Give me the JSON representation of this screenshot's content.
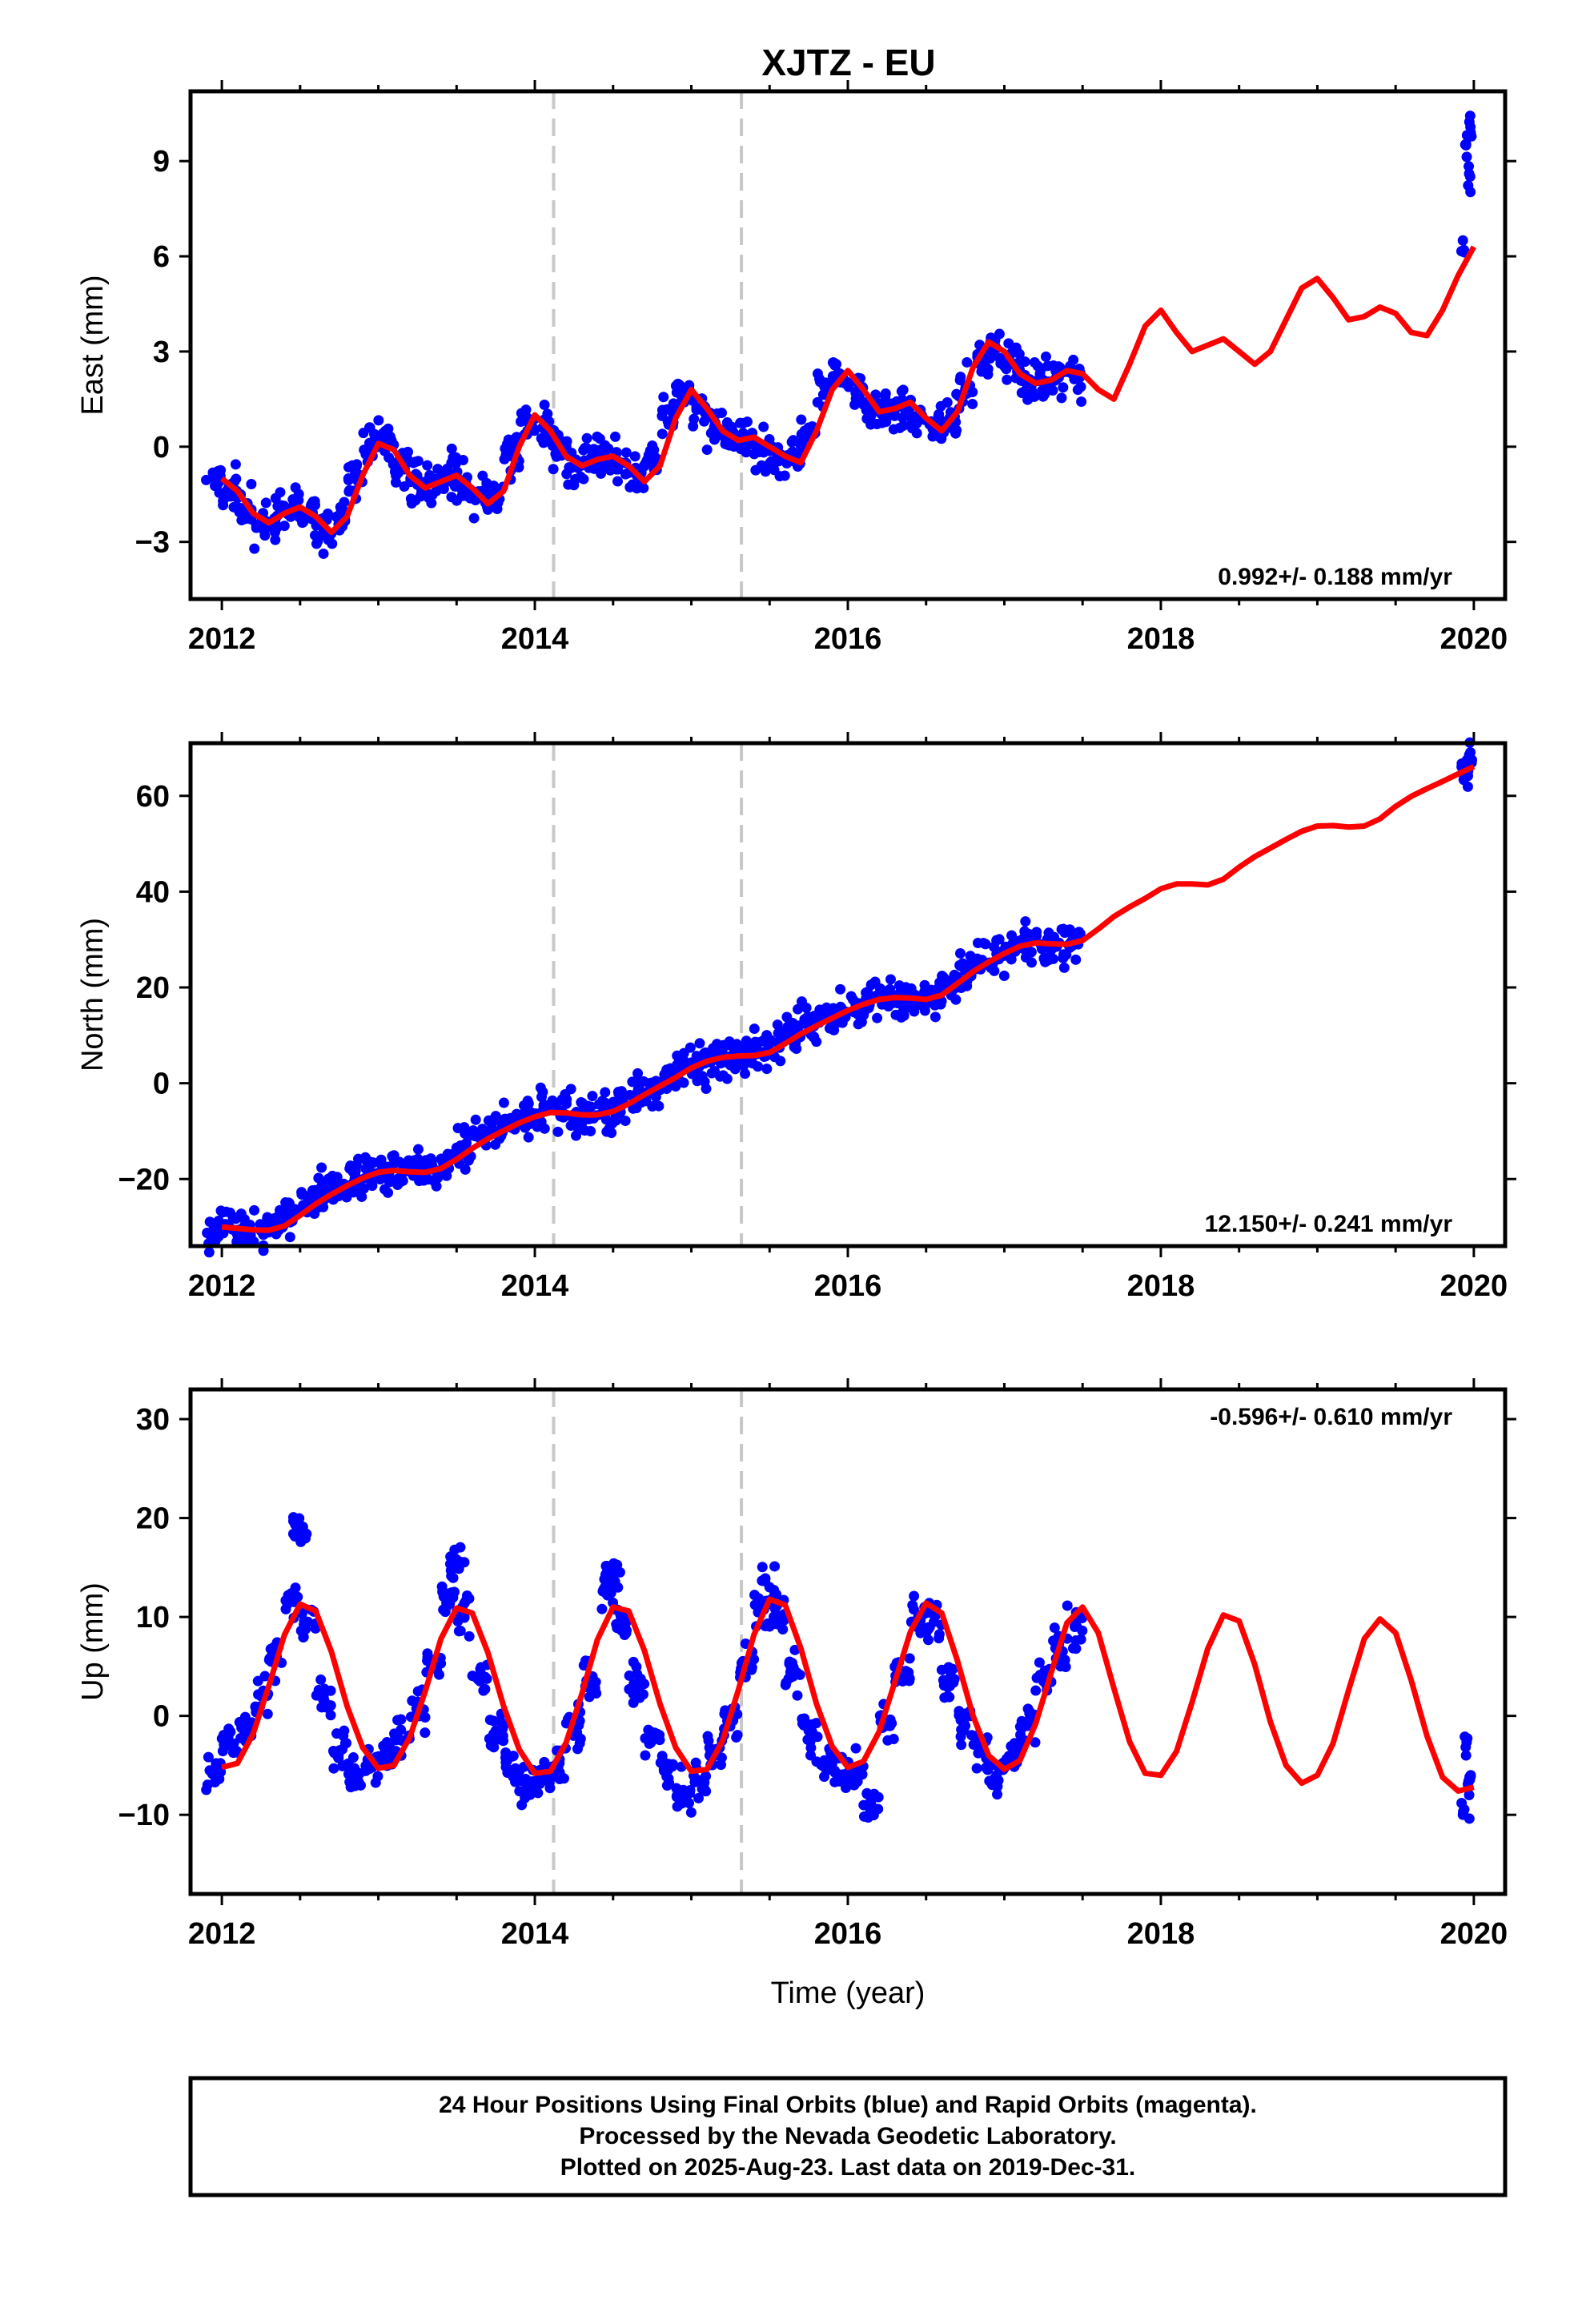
{
  "title": "XJTZ - EU",
  "caption": {
    "lines": [
      "24 Hour Positions Using Final Orbits (blue) and Rapid Orbits (magenta).",
      "Processed by the Nevada Geodetic Laboratory.",
      "Plotted on 2025-Aug-23. Last data on 2019-Dec-31."
    ]
  },
  "colors": {
    "points": "#0000ff",
    "fit": "#ff0000",
    "event_lines": "#c8c8c8",
    "frame": "#000000"
  },
  "chart_data": [
    {
      "type": "scatter",
      "ylabel": "East (mm)",
      "xlabel": "",
      "rate_label": "0.992+/- 0.188 mm/yr",
      "rate_position": "bottom-right",
      "xlim": [
        2011.8,
        2020.2
      ],
      "ylim": [
        -4.8,
        11.2
      ],
      "x_ticks": [
        2012,
        2014,
        2016,
        2018,
        2020
      ],
      "y_ticks": [
        -3,
        0,
        3,
        6,
        9
      ],
      "y_tick_labels": [
        "−3",
        "0",
        "3",
        "6",
        "9"
      ],
      "event_lines_x": [
        2014.12,
        2015.32
      ],
      "series": [
        {
          "kind": "points",
          "x": [
            2011.95,
            2012.05,
            2012.15,
            2012.25,
            2012.35,
            2012.45,
            2012.55,
            2012.65,
            2012.75,
            2012.85,
            2012.95,
            2013.05,
            2013.15,
            2013.25,
            2013.35,
            2013.45,
            2013.55,
            2013.65,
            2013.75,
            2013.85,
            2013.95,
            2014.05,
            2014.15,
            2014.25,
            2014.35,
            2014.45,
            2014.55,
            2014.65,
            2014.75,
            2014.85,
            2014.95,
            2015.05,
            2015.15,
            2015.25,
            2015.35,
            2015.45,
            2015.55,
            2015.65,
            2015.75,
            2015.85,
            2015.95,
            2016.05,
            2016.15,
            2016.25,
            2016.35,
            2016.45,
            2016.55,
            2016.65,
            2016.75,
            2016.85,
            2016.95,
            2017.05,
            2017.15,
            2017.25,
            2017.35,
            2017.45,
            2019.93,
            2019.95,
            2019.97,
            2019.98
          ],
          "y": [
            -1.0,
            -1.3,
            -2.0,
            -2.4,
            -2.2,
            -1.9,
            -2.1,
            -2.6,
            -2.4,
            -1.0,
            0.0,
            0.2,
            -0.6,
            -1.2,
            -1.1,
            -0.8,
            -1.2,
            -1.6,
            -1.7,
            -0.3,
            0.8,
            0.6,
            -0.2,
            -0.6,
            -0.4,
            -0.2,
            -0.5,
            -0.9,
            -0.5,
            0.8,
            1.6,
            1.2,
            0.5,
            0.2,
            0.2,
            -0.1,
            -0.3,
            -0.4,
            0.6,
            1.9,
            2.3,
            1.7,
            1.0,
            1.1,
            1.3,
            1.0,
            0.7,
            0.9,
            1.8,
            2.7,
            3.1,
            2.6,
            2.1,
            2.1,
            2.3,
            2.2,
            6.5,
            9.5,
            8.6,
            9.9
          ]
        },
        {
          "kind": "fit",
          "x": [
            2012.0,
            2012.1,
            2012.2,
            2012.3,
            2012.4,
            2012.5,
            2012.6,
            2012.7,
            2012.8,
            2012.9,
            2013.0,
            2013.1,
            2013.2,
            2013.3,
            2013.4,
            2013.5,
            2013.6,
            2013.7,
            2013.8,
            2013.9,
            2014.0,
            2014.1,
            2014.2,
            2014.3,
            2014.4,
            2014.5,
            2014.6,
            2014.7,
            2014.8,
            2014.9,
            2015.0,
            2015.1,
            2015.2,
            2015.3,
            2015.4,
            2015.5,
            2015.6,
            2015.7,
            2015.8,
            2015.9,
            2016.0,
            2016.1,
            2016.2,
            2016.3,
            2016.4,
            2016.5,
            2016.6,
            2016.7,
            2016.8,
            2016.9,
            2017.0,
            2017.1,
            2017.2,
            2017.3,
            2017.4,
            2017.5,
            2017.6,
            2017.7,
            2017.8,
            2017.9,
            2018.0,
            2018.1,
            2018.2,
            2018.3,
            2018.4,
            2018.5,
            2018.6,
            2018.7,
            2018.8,
            2018.9,
            2019.0,
            2019.1,
            2019.2,
            2019.3,
            2019.4,
            2019.5,
            2019.6,
            2019.7,
            2019.8,
            2019.9,
            2020.0
          ],
          "y": [
            -1.0,
            -1.4,
            -2.1,
            -2.4,
            -2.1,
            -1.9,
            -2.2,
            -2.7,
            -2.2,
            -0.9,
            0.1,
            -0.1,
            -0.9,
            -1.3,
            -1.1,
            -0.9,
            -1.3,
            -1.8,
            -1.4,
            0.0,
            1.0,
            0.5,
            -0.3,
            -0.6,
            -0.4,
            -0.3,
            -0.6,
            -1.1,
            -0.6,
            0.9,
            1.8,
            1.2,
            0.5,
            0.2,
            0.3,
            0.0,
            -0.3,
            -0.5,
            0.5,
            1.8,
            2.4,
            1.8,
            1.1,
            1.2,
            1.4,
            0.9,
            0.5,
            1.1,
            2.5,
            3.3,
            3.0,
            2.3,
            2.0,
            2.1,
            2.4,
            2.3,
            1.8,
            1.5,
            2.6,
            3.8,
            4.3,
            3.6,
            3.0,
            3.2,
            3.4,
            3.0,
            2.6,
            3.0,
            4.0,
            5.0,
            5.3,
            4.7,
            4.0,
            4.1,
            4.4,
            4.2,
            3.6,
            3.5,
            4.3,
            5.4,
            6.3
          ]
        }
      ]
    },
    {
      "type": "scatter",
      "ylabel": "North (mm)",
      "xlabel": "",
      "rate_label": "12.150+/- 0.241 mm/yr",
      "rate_position": "bottom-right",
      "xlim": [
        2011.8,
        2020.2
      ],
      "ylim": [
        -34,
        71
      ],
      "x_ticks": [
        2012,
        2014,
        2016,
        2018,
        2020
      ],
      "y_ticks": [
        -20,
        0,
        20,
        40,
        60
      ],
      "y_tick_labels": [
        "−20",
        "0",
        "20",
        "40",
        "60"
      ],
      "event_lines_x": [
        2014.12,
        2015.32
      ],
      "series": [
        {
          "kind": "points",
          "x": [
            2011.95,
            2012.05,
            2012.15,
            2012.25,
            2012.35,
            2012.45,
            2012.55,
            2012.65,
            2012.75,
            2012.85,
            2012.95,
            2013.05,
            2013.15,
            2013.25,
            2013.35,
            2013.45,
            2013.55,
            2013.65,
            2013.75,
            2013.85,
            2013.95,
            2014.05,
            2014.15,
            2014.25,
            2014.35,
            2014.45,
            2014.55,
            2014.65,
            2014.75,
            2014.85,
            2014.95,
            2015.05,
            2015.15,
            2015.25,
            2015.35,
            2015.45,
            2015.55,
            2015.65,
            2015.75,
            2015.85,
            2015.95,
            2016.05,
            2016.15,
            2016.25,
            2016.35,
            2016.45,
            2016.55,
            2016.65,
            2016.75,
            2016.85,
            2016.95,
            2017.05,
            2017.15,
            2017.25,
            2017.35,
            2017.45,
            2019.93,
            2019.95,
            2019.97,
            2019.98
          ],
          "y": [
            -30.0,
            -30.2,
            -30.6,
            -30.8,
            -29.5,
            -27.0,
            -24.8,
            -23.0,
            -21.5,
            -19.8,
            -18.5,
            -18.3,
            -18.6,
            -18.8,
            -18.0,
            -16.0,
            -13.5,
            -11.5,
            -10.0,
            -8.5,
            -7.0,
            -5.8,
            -6.0,
            -6.5,
            -6.8,
            -6.2,
            -4.5,
            -2.5,
            -0.8,
            1.0,
            3.0,
            4.5,
            5.2,
            5.6,
            5.8,
            6.5,
            8.5,
            10.5,
            12.0,
            13.5,
            15.0,
            16.5,
            17.5,
            17.8,
            17.6,
            17.5,
            18.5,
            21.0,
            23.5,
            25.5,
            27.0,
            28.5,
            29.2,
            29.0,
            29.3,
            30.0,
            66.5,
            65.5,
            66.0,
            67.8
          ]
        },
        {
          "kind": "fit",
          "x": [
            2012.0,
            2012.1,
            2012.2,
            2012.3,
            2012.4,
            2012.5,
            2012.6,
            2012.7,
            2012.8,
            2012.9,
            2013.0,
            2013.1,
            2013.2,
            2013.3,
            2013.4,
            2013.5,
            2013.6,
            2013.7,
            2013.8,
            2013.9,
            2014.0,
            2014.1,
            2014.2,
            2014.3,
            2014.4,
            2014.5,
            2014.6,
            2014.7,
            2014.8,
            2014.9,
            2015.0,
            2015.1,
            2015.2,
            2015.3,
            2015.4,
            2015.5,
            2015.6,
            2015.7,
            2015.8,
            2015.9,
            2016.0,
            2016.1,
            2016.2,
            2016.3,
            2016.4,
            2016.5,
            2016.6,
            2016.7,
            2016.8,
            2016.9,
            2017.0,
            2017.1,
            2017.2,
            2017.3,
            2017.4,
            2017.5,
            2017.6,
            2017.7,
            2017.8,
            2017.9,
            2018.0,
            2018.1,
            2018.2,
            2018.3,
            2018.4,
            2018.5,
            2018.6,
            2018.7,
            2018.8,
            2018.9,
            2019.0,
            2019.1,
            2019.2,
            2019.3,
            2019.4,
            2019.5,
            2019.6,
            2019.7,
            2019.8,
            2019.9,
            2020.0
          ],
          "y": [
            -30.0,
            -30.3,
            -30.6,
            -30.7,
            -29.8,
            -27.6,
            -25.2,
            -23.2,
            -21.4,
            -19.8,
            -18.6,
            -18.2,
            -18.5,
            -18.6,
            -17.8,
            -15.9,
            -13.6,
            -11.6,
            -9.9,
            -8.3,
            -7.0,
            -6.1,
            -6.2,
            -6.6,
            -6.6,
            -5.9,
            -4.3,
            -2.4,
            -0.6,
            1.2,
            3.2,
            4.6,
            5.4,
            5.7,
            5.8,
            6.4,
            8.3,
            10.3,
            12.0,
            13.6,
            15.2,
            16.5,
            17.5,
            17.9,
            17.8,
            17.5,
            18.4,
            20.8,
            23.3,
            25.3,
            27.1,
            28.6,
            29.3,
            29.1,
            29.0,
            29.8,
            32.2,
            34.8,
            36.8,
            38.6,
            40.6,
            41.6,
            41.6,
            41.4,
            42.6,
            45.1,
            47.3,
            49.1,
            50.9,
            52.6,
            53.7,
            53.8,
            53.5,
            53.7,
            55.2,
            57.8,
            59.9,
            61.5,
            63.0,
            64.6,
            66.1
          ]
        }
      ]
    },
    {
      "type": "scatter",
      "ylabel": "Up (mm)",
      "xlabel": "Time (year)",
      "rate_label": "-0.596+/- 0.610 mm/yr",
      "rate_position": "top-right",
      "xlim": [
        2011.8,
        2020.2
      ],
      "ylim": [
        -18,
        33
      ],
      "x_ticks": [
        2012,
        2014,
        2016,
        2018,
        2020
      ],
      "y_ticks": [
        -10,
        0,
        10,
        20,
        30
      ],
      "y_tick_labels": [
        "−10",
        "0",
        "10",
        "20",
        "30"
      ],
      "event_lines_x": [
        2014.12,
        2015.32
      ],
      "series": [
        {
          "kind": "points",
          "x": [
            2011.95,
            2012.05,
            2012.15,
            2012.25,
            2012.35,
            2012.45,
            2012.5,
            2012.55,
            2012.65,
            2012.75,
            2012.85,
            2012.95,
            2013.05,
            2013.15,
            2013.25,
            2013.35,
            2013.45,
            2013.5,
            2013.55,
            2013.65,
            2013.75,
            2013.85,
            2013.95,
            2014.05,
            2014.15,
            2014.25,
            2014.35,
            2014.45,
            2014.5,
            2014.55,
            2014.65,
            2014.75,
            2014.85,
            2014.95,
            2015.05,
            2015.15,
            2015.25,
            2015.35,
            2015.45,
            2015.5,
            2015.55,
            2015.65,
            2015.75,
            2015.85,
            2015.95,
            2016.05,
            2016.15,
            2016.25,
            2016.35,
            2016.45,
            2016.55,
            2016.65,
            2016.75,
            2016.85,
            2016.95,
            2017.05,
            2017.15,
            2017.25,
            2017.35,
            2017.45,
            2019.93,
            2019.95,
            2019.97,
            2019.98
          ],
          "y": [
            -6.0,
            -3.0,
            -1.5,
            2.0,
            6.0,
            12.0,
            19.0,
            9.5,
            2.0,
            -3.5,
            -6.0,
            -5.0,
            -4.0,
            -2.5,
            1.0,
            5.0,
            12.0,
            15.5,
            10.0,
            3.5,
            -1.5,
            -5.5,
            -7.0,
            -6.0,
            -5.0,
            -1.0,
            4.0,
            13.0,
            14.5,
            10.0,
            3.0,
            -2.0,
            -5.5,
            -7.5,
            -6.5,
            -4.0,
            -0.5,
            5.0,
            11.0,
            13.0,
            10.0,
            4.0,
            -1.5,
            -4.5,
            -6.0,
            -5.5,
            -9.0,
            -1.0,
            4.5,
            10.0,
            9.5,
            3.5,
            -1.0,
            -3.5,
            -6.0,
            -4.0,
            -1.0,
            3.5,
            6.5,
            9.0,
            -10.0,
            -4.0,
            -8.0,
            -6.0
          ]
        },
        {
          "kind": "fit",
          "x": [
            2012.0,
            2012.1,
            2012.2,
            2012.3,
            2012.4,
            2012.5,
            2012.6,
            2012.7,
            2012.8,
            2012.9,
            2013.0,
            2013.1,
            2013.2,
            2013.3,
            2013.4,
            2013.5,
            2013.6,
            2013.7,
            2013.8,
            2013.9,
            2014.0,
            2014.1,
            2014.2,
            2014.3,
            2014.4,
            2014.5,
            2014.6,
            2014.7,
            2014.8,
            2014.9,
            2015.0,
            2015.1,
            2015.2,
            2015.3,
            2015.4,
            2015.5,
            2015.6,
            2015.7,
            2015.8,
            2015.9,
            2016.0,
            2016.1,
            2016.2,
            2016.3,
            2016.4,
            2016.5,
            2016.6,
            2016.7,
            2016.8,
            2016.9,
            2017.0,
            2017.1,
            2017.2,
            2017.3,
            2017.4,
            2017.5,
            2017.6,
            2017.7,
            2017.8,
            2017.9,
            2018.0,
            2018.1,
            2018.2,
            2018.3,
            2018.4,
            2018.5,
            2018.6,
            2018.7,
            2018.8,
            2018.9,
            2019.0,
            2019.1,
            2019.2,
            2019.3,
            2019.4,
            2019.5,
            2019.6,
            2019.7,
            2019.8,
            2019.9,
            2020.0
          ],
          "y": [
            -5.2,
            -4.8,
            -1.8,
            3.0,
            8.2,
            11.3,
            10.6,
            6.5,
            1.0,
            -3.2,
            -5.3,
            -5.0,
            -2.2,
            2.5,
            7.8,
            10.9,
            10.4,
            6.4,
            1.0,
            -3.4,
            -5.8,
            -5.6,
            -2.7,
            2.2,
            7.7,
            11.0,
            10.6,
            6.6,
            1.2,
            -3.2,
            -5.6,
            -5.4,
            -2.5,
            2.6,
            8.2,
            11.8,
            11.2,
            6.8,
            1.2,
            -3.1,
            -5.2,
            -4.6,
            -1.6,
            3.4,
            8.5,
            11.4,
            10.4,
            5.6,
            0.0,
            -4.0,
            -5.4,
            -4.5,
            -0.8,
            4.4,
            9.4,
            11.0,
            8.4,
            2.8,
            -2.6,
            -5.8,
            -6.0,
            -3.6,
            1.4,
            6.8,
            10.2,
            9.6,
            5.2,
            -0.6,
            -5.0,
            -6.8,
            -6.0,
            -2.8,
            2.6,
            7.8,
            9.8,
            8.4,
            3.6,
            -2.0,
            -6.2,
            -7.6,
            -7.2
          ]
        }
      ]
    }
  ]
}
